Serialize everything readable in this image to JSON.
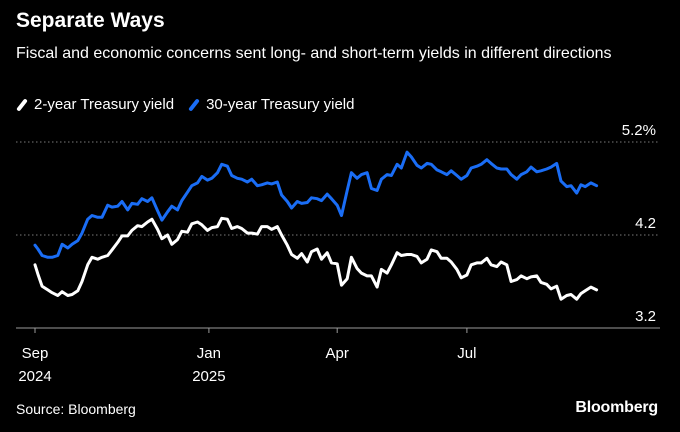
{
  "colors": {
    "background": "#000000",
    "text": "#ffffff",
    "grid": "#7a7a7a",
    "series_2y": "#ffffff",
    "series_30y": "#1a6df5"
  },
  "source": "Source: Bloomberg",
  "brand": "Bloomberg",
  "chart_data": {
    "type": "line",
    "title": "Separate Ways",
    "subtitle": "Fiscal and economic concerns sent long- and short-term yields in different directions",
    "xlabel": "",
    "ylabel": "",
    "ylim": [
      3.2,
      5.2
    ],
    "yticks": [
      "3.2",
      "4.2",
      "5.2%"
    ],
    "ytick_values": [
      3.2,
      4.2,
      5.2
    ],
    "grid": "horizontal dotted",
    "legend_position": "top-left",
    "xticks": [
      {
        "date": "2024-09-01",
        "label": "Sep",
        "year": "2024"
      },
      {
        "date": "2025-01-01",
        "label": "Jan",
        "year": "2025"
      },
      {
        "date": "2025-04-01",
        "label": "Apr",
        "year": ""
      },
      {
        "date": "2025-07-01",
        "label": "Jul",
        "year": ""
      }
    ],
    "xlim": [
      "2024-09-01",
      "2025-10-15"
    ],
    "series": [
      {
        "name": "2-year Treasury yield",
        "color": "#ffffff",
        "points": [
          [
            "2024-09-01",
            3.88
          ],
          [
            "2024-09-03",
            3.78
          ],
          [
            "2024-09-06",
            3.65
          ],
          [
            "2024-09-10",
            3.61
          ],
          [
            "2024-09-13",
            3.58
          ],
          [
            "2024-09-17",
            3.55
          ],
          [
            "2024-09-20",
            3.59
          ],
          [
            "2024-09-24",
            3.55
          ],
          [
            "2024-09-27",
            3.56
          ],
          [
            "2024-10-01",
            3.6
          ],
          [
            "2024-10-04",
            3.7
          ],
          [
            "2024-10-08",
            3.88
          ],
          [
            "2024-10-11",
            3.96
          ],
          [
            "2024-10-15",
            3.94
          ],
          [
            "2024-10-18",
            3.96
          ],
          [
            "2024-10-22",
            3.98
          ],
          [
            "2024-10-25",
            4.04
          ],
          [
            "2024-10-29",
            4.12
          ],
          [
            "2024-11-01",
            4.19
          ],
          [
            "2024-11-05",
            4.19
          ],
          [
            "2024-11-08",
            4.25
          ],
          [
            "2024-11-12",
            4.3
          ],
          [
            "2024-11-15",
            4.29
          ],
          [
            "2024-11-19",
            4.34
          ],
          [
            "2024-11-22",
            4.37
          ],
          [
            "2024-11-26",
            4.26
          ],
          [
            "2024-11-29",
            4.16
          ],
          [
            "2024-12-03",
            4.2
          ],
          [
            "2024-12-06",
            4.1
          ],
          [
            "2024-12-10",
            4.15
          ],
          [
            "2024-12-13",
            4.24
          ],
          [
            "2024-12-17",
            4.23
          ],
          [
            "2024-12-20",
            4.32
          ],
          [
            "2024-12-24",
            4.34
          ],
          [
            "2024-12-27",
            4.31
          ],
          [
            "2024-12-31",
            4.25
          ],
          [
            "2025-01-03",
            4.28
          ],
          [
            "2025-01-07",
            4.29
          ],
          [
            "2025-01-10",
            4.38
          ],
          [
            "2025-01-14",
            4.37
          ],
          [
            "2025-01-17",
            4.27
          ],
          [
            "2025-01-21",
            4.29
          ],
          [
            "2025-01-24",
            4.27
          ],
          [
            "2025-01-28",
            4.22
          ],
          [
            "2025-01-31",
            4.22
          ],
          [
            "2025-02-04",
            4.21
          ],
          [
            "2025-02-07",
            4.29
          ],
          [
            "2025-02-11",
            4.29
          ],
          [
            "2025-02-14",
            4.26
          ],
          [
            "2025-02-18",
            4.29
          ],
          [
            "2025-02-21",
            4.2
          ],
          [
            "2025-02-25",
            4.09
          ],
          [
            "2025-02-28",
            3.99
          ],
          [
            "2025-03-04",
            3.95
          ],
          [
            "2025-03-07",
            4.0
          ],
          [
            "2025-03-11",
            3.91
          ],
          [
            "2025-03-14",
            4.02
          ],
          [
            "2025-03-18",
            4.05
          ],
          [
            "2025-03-21",
            3.94
          ],
          [
            "2025-03-25",
            4.01
          ],
          [
            "2025-03-28",
            3.9
          ],
          [
            "2025-04-01",
            3.89
          ],
          [
            "2025-04-04",
            3.66
          ],
          [
            "2025-04-08",
            3.73
          ],
          [
            "2025-04-11",
            3.96
          ],
          [
            "2025-04-15",
            3.84
          ],
          [
            "2025-04-18",
            3.79
          ],
          [
            "2025-04-22",
            3.76
          ],
          [
            "2025-04-25",
            3.76
          ],
          [
            "2025-04-29",
            3.64
          ],
          [
            "2025-05-02",
            3.83
          ],
          [
            "2025-05-06",
            3.79
          ],
          [
            "2025-05-09",
            3.88
          ],
          [
            "2025-05-13",
            4.01
          ],
          [
            "2025-05-16",
            3.98
          ],
          [
            "2025-05-20",
            3.99
          ],
          [
            "2025-05-23",
            3.99
          ],
          [
            "2025-05-27",
            3.97
          ],
          [
            "2025-05-30",
            3.9
          ],
          [
            "2025-06-03",
            3.94
          ],
          [
            "2025-06-06",
            4.04
          ],
          [
            "2025-06-10",
            4.02
          ],
          [
            "2025-06-13",
            3.95
          ],
          [
            "2025-06-17",
            3.95
          ],
          [
            "2025-06-20",
            3.91
          ],
          [
            "2025-06-24",
            3.83
          ],
          [
            "2025-06-27",
            3.74
          ],
          [
            "2025-07-01",
            3.77
          ],
          [
            "2025-07-04",
            3.88
          ],
          [
            "2025-07-08",
            3.9
          ],
          [
            "2025-07-11",
            3.9
          ],
          [
            "2025-07-15",
            3.95
          ],
          [
            "2025-07-18",
            3.88
          ],
          [
            "2025-07-22",
            3.86
          ],
          [
            "2025-07-25",
            3.91
          ],
          [
            "2025-07-29",
            3.88
          ],
          [
            "2025-08-01",
            3.7
          ],
          [
            "2025-08-05",
            3.72
          ],
          [
            "2025-08-08",
            3.76
          ],
          [
            "2025-08-12",
            3.73
          ],
          [
            "2025-08-15",
            3.75
          ],
          [
            "2025-08-19",
            3.76
          ],
          [
            "2025-08-22",
            3.69
          ],
          [
            "2025-08-26",
            3.67
          ],
          [
            "2025-08-29",
            3.62
          ],
          [
            "2025-09-02",
            3.65
          ],
          [
            "2025-09-05",
            3.51
          ],
          [
            "2025-09-09",
            3.55
          ],
          [
            "2025-09-12",
            3.56
          ],
          [
            "2025-09-16",
            3.51
          ],
          [
            "2025-09-19",
            3.57
          ],
          [
            "2025-09-22",
            3.6
          ],
          [
            "2025-09-26",
            3.64
          ],
          [
            "2025-09-30",
            3.61
          ]
        ]
      },
      {
        "name": "30-year Treasury yield",
        "color": "#1a6df5",
        "points": [
          [
            "2024-09-01",
            4.09
          ],
          [
            "2024-09-03",
            4.05
          ],
          [
            "2024-09-06",
            3.98
          ],
          [
            "2024-09-10",
            3.96
          ],
          [
            "2024-09-13",
            3.96
          ],
          [
            "2024-09-17",
            3.98
          ],
          [
            "2024-09-20",
            4.1
          ],
          [
            "2024-09-24",
            4.06
          ],
          [
            "2024-09-27",
            4.1
          ],
          [
            "2024-10-01",
            4.14
          ],
          [
            "2024-10-04",
            4.22
          ],
          [
            "2024-10-08",
            4.37
          ],
          [
            "2024-10-11",
            4.41
          ],
          [
            "2024-10-15",
            4.39
          ],
          [
            "2024-10-18",
            4.39
          ],
          [
            "2024-10-22",
            4.52
          ],
          [
            "2024-10-25",
            4.5
          ],
          [
            "2024-10-29",
            4.51
          ],
          [
            "2024-11-01",
            4.56
          ],
          [
            "2024-11-05",
            4.47
          ],
          [
            "2024-11-08",
            4.54
          ],
          [
            "2024-11-12",
            4.53
          ],
          [
            "2024-11-15",
            4.59
          ],
          [
            "2024-11-19",
            4.56
          ],
          [
            "2024-11-22",
            4.6
          ],
          [
            "2024-11-26",
            4.46
          ],
          [
            "2024-11-29",
            4.36
          ],
          [
            "2024-12-03",
            4.45
          ],
          [
            "2024-12-06",
            4.51
          ],
          [
            "2024-12-10",
            4.47
          ],
          [
            "2024-12-13",
            4.57
          ],
          [
            "2024-12-17",
            4.66
          ],
          [
            "2024-12-20",
            4.73
          ],
          [
            "2024-12-24",
            4.76
          ],
          [
            "2024-12-27",
            4.83
          ],
          [
            "2024-12-31",
            4.79
          ],
          [
            "2025-01-03",
            4.81
          ],
          [
            "2025-01-07",
            4.87
          ],
          [
            "2025-01-10",
            4.96
          ],
          [
            "2025-01-14",
            4.94
          ],
          [
            "2025-01-17",
            4.84
          ],
          [
            "2025-01-21",
            4.81
          ],
          [
            "2025-01-24",
            4.8
          ],
          [
            "2025-01-28",
            4.77
          ],
          [
            "2025-01-31",
            4.8
          ],
          [
            "2025-02-04",
            4.73
          ],
          [
            "2025-02-07",
            4.74
          ],
          [
            "2025-02-11",
            4.76
          ],
          [
            "2025-02-14",
            4.75
          ],
          [
            "2025-02-18",
            4.77
          ],
          [
            "2025-02-21",
            4.63
          ],
          [
            "2025-02-25",
            4.56
          ],
          [
            "2025-02-28",
            4.49
          ],
          [
            "2025-03-04",
            4.56
          ],
          [
            "2025-03-07",
            4.54
          ],
          [
            "2025-03-11",
            4.55
          ],
          [
            "2025-03-14",
            4.6
          ],
          [
            "2025-03-18",
            4.59
          ],
          [
            "2025-03-21",
            4.57
          ],
          [
            "2025-03-25",
            4.64
          ],
          [
            "2025-03-28",
            4.59
          ],
          [
            "2025-04-01",
            4.52
          ],
          [
            "2025-04-04",
            4.41
          ],
          [
            "2025-04-08",
            4.68
          ],
          [
            "2025-04-11",
            4.87
          ],
          [
            "2025-04-15",
            4.81
          ],
          [
            "2025-04-18",
            4.85
          ],
          [
            "2025-04-22",
            4.87
          ],
          [
            "2025-04-25",
            4.7
          ],
          [
            "2025-04-29",
            4.68
          ],
          [
            "2025-05-02",
            4.8
          ],
          [
            "2025-05-06",
            4.85
          ],
          [
            "2025-05-09",
            4.84
          ],
          [
            "2025-05-13",
            4.96
          ],
          [
            "2025-05-16",
            4.92
          ],
          [
            "2025-05-20",
            5.09
          ],
          [
            "2025-05-23",
            5.04
          ],
          [
            "2025-05-27",
            4.95
          ],
          [
            "2025-05-30",
            4.92
          ],
          [
            "2025-06-03",
            4.97
          ],
          [
            "2025-06-06",
            4.96
          ],
          [
            "2025-06-10",
            4.9
          ],
          [
            "2025-06-13",
            4.88
          ],
          [
            "2025-06-17",
            4.85
          ],
          [
            "2025-06-20",
            4.89
          ],
          [
            "2025-06-24",
            4.84
          ],
          [
            "2025-06-27",
            4.8
          ],
          [
            "2025-07-01",
            4.84
          ],
          [
            "2025-07-04",
            4.92
          ],
          [
            "2025-07-08",
            4.94
          ],
          [
            "2025-07-11",
            4.96
          ],
          [
            "2025-07-15",
            5.01
          ],
          [
            "2025-07-18",
            4.97
          ],
          [
            "2025-07-22",
            4.92
          ],
          [
            "2025-07-25",
            4.91
          ],
          [
            "2025-07-29",
            4.91
          ],
          [
            "2025-08-01",
            4.85
          ],
          [
            "2025-08-05",
            4.8
          ],
          [
            "2025-08-08",
            4.85
          ],
          [
            "2025-08-12",
            4.88
          ],
          [
            "2025-08-15",
            4.93
          ],
          [
            "2025-08-19",
            4.88
          ],
          [
            "2025-08-22",
            4.89
          ],
          [
            "2025-08-26",
            4.91
          ],
          [
            "2025-08-29",
            4.93
          ],
          [
            "2025-09-02",
            4.97
          ],
          [
            "2025-09-05",
            4.78
          ],
          [
            "2025-09-09",
            4.72
          ],
          [
            "2025-09-12",
            4.73
          ],
          [
            "2025-09-16",
            4.65
          ],
          [
            "2025-09-19",
            4.74
          ],
          [
            "2025-09-22",
            4.72
          ],
          [
            "2025-09-26",
            4.76
          ],
          [
            "2025-09-30",
            4.73
          ]
        ]
      }
    ]
  }
}
